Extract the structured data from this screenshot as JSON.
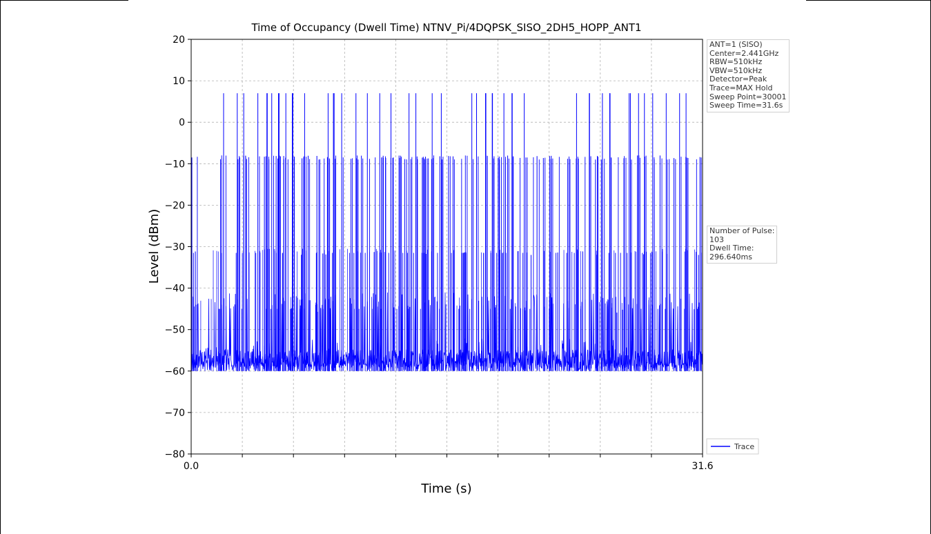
{
  "chart_data": {
    "type": "line",
    "title": "Time of Occupancy (Dwell Time) NTNV_Pi/4DQPSK_SISO_2DH5_HOPP_ANT1",
    "xlabel": "Time (s)",
    "ylabel": "Level (dBm)",
    "xlim": [
      0.0,
      31.6
    ],
    "ylim": [
      -80,
      20
    ],
    "x_tick_labels": [
      "0.0",
      "31.6"
    ],
    "y_ticks": [
      20,
      10,
      0,
      -10,
      -20,
      -30,
      -40,
      -50,
      -60,
      -70,
      -80
    ],
    "y_tick_labels": [
      "20",
      "10",
      "0",
      "−10",
      "−20",
      "−30",
      "−40",
      "−50",
      "−60",
      "−70",
      "−80"
    ],
    "grid": true,
    "legend": "lower right",
    "series": [
      {
        "name": "Trace",
        "color": "#0000ff",
        "noise_floor_dBm": [
          -60,
          -52
        ],
        "pulse_levels_dBm": [
          7,
          -8.5,
          -31.5,
          -45
        ],
        "pulse_times_s": [
          0.3,
          1.8,
          1.95,
          2.9,
          3.3,
          3.4,
          4.1,
          4.5,
          4.7,
          5.0,
          5.2,
          5.4,
          5.7,
          5.9,
          6.3,
          6.8,
          7.0,
          7.2,
          7.8,
          8.1,
          8.3,
          8.5,
          8.8,
          9.3,
          9.9,
          10.2,
          10.5,
          10.9,
          11.3,
          11.6,
          11.9,
          12.4,
          12.9,
          13.2,
          13.5,
          13.9,
          14.3,
          14.5,
          14.9,
          15.4,
          15.9,
          16.2,
          16.6,
          16.9,
          17.3,
          17.6,
          18.2,
          18.6,
          19.0,
          19.3,
          19.5,
          19.8,
          20.2,
          20.6,
          21.0,
          21.4,
          21.8,
          22.2,
          22.6,
          23.3,
          23.8,
          24.2,
          24.6,
          25.0,
          25.4,
          25.9,
          26.3,
          26.7,
          27.1,
          27.6,
          28.0,
          28.5,
          29.0,
          29.4,
          29.8,
          30.2,
          30.6,
          31.1,
          31.3
        ]
      }
    ]
  },
  "info_box": {
    "lines": [
      "ANT=1 (SISO)",
      "Center=2.441GHz",
      "RBW=510kHz",
      "VBW=510kHz",
      "Detector=Peak",
      "Trace=MAX Hold",
      "Sweep Point=30001",
      "Sweep Time=31.6s"
    ]
  },
  "result_box": {
    "lines": [
      "Number of Pulse:",
      "103",
      "Dwell Time:",
      "296.640ms"
    ]
  },
  "legend": {
    "label": "Trace",
    "color": "#0000ff"
  }
}
